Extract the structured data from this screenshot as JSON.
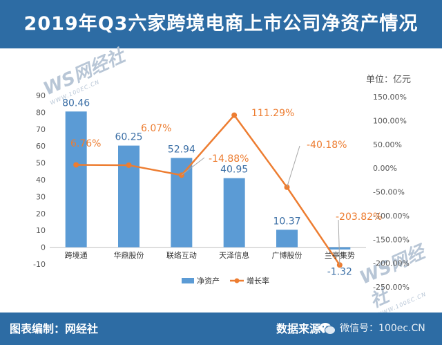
{
  "title": "2019年Q3六家跨境电商上市公司净资产情况",
  "unit_label": "单位：亿元",
  "footer": {
    "left": "图表编制：网经社",
    "right": "数据来源：",
    "wechat": "微信号：100ec.CN"
  },
  "watermark": {
    "text": "WS网经社",
    "subtext": "WWW.100EC.CN"
  },
  "colors": {
    "header": "#2d6ca4",
    "bars": "#5b9bd5",
    "line": "#ed7d31"
  },
  "chart_data": {
    "type": "bar",
    "categories": [
      "跨境通",
      "华鼎股份",
      "联络互动",
      "天泽信息",
      "广博股份",
      "兰亭集势"
    ],
    "series": [
      {
        "name": "净资产",
        "type": "bar",
        "axis": "left",
        "values": [
          80.46,
          60.25,
          52.94,
          40.95,
          10.37,
          -1.32
        ],
        "labels": [
          "80.46",
          "60.25",
          "52.94",
          "40.95",
          "10.37",
          "-1.32"
        ]
      },
      {
        "name": "增长率",
        "type": "line",
        "axis": "right",
        "values": [
          6.76,
          6.07,
          -14.88,
          111.29,
          -40.18,
          -203.82
        ],
        "labels": [
          "6.76%",
          "6.07%",
          "-14.88%",
          "111.29%",
          "-40.18%",
          "-203.82%"
        ]
      }
    ],
    "y_left": {
      "min": -10,
      "max": 90,
      "step": 10,
      "ticks": [
        "-10",
        "0",
        "10",
        "20",
        "30",
        "40",
        "50",
        "60",
        "70",
        "80",
        "90"
      ]
    },
    "y_right": {
      "min": -250,
      "max": 150,
      "step": 50,
      "ticks": [
        "-250.00%",
        "-200.00%",
        "-150.00%",
        "-100.00%",
        "-50.00%",
        "0.00%",
        "50.00%",
        "100.00%",
        "150.00%"
      ]
    },
    "grid": false,
    "legend_position": "bottom"
  }
}
